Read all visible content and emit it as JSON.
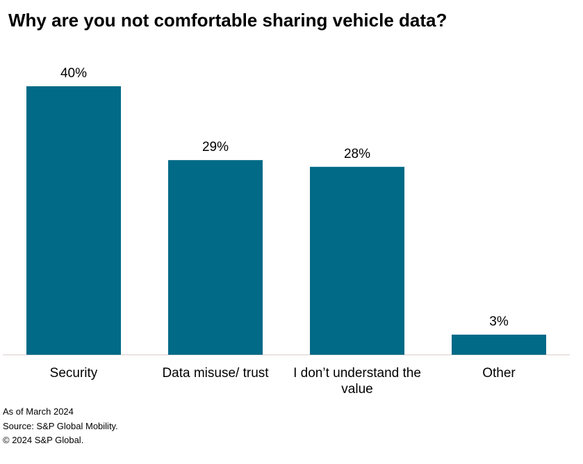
{
  "chart_data": {
    "type": "bar",
    "title": "Why are you not comfortable sharing vehicle data?",
    "categories": [
      "Security",
      "Data misuse/ trust",
      "I don’t understand the value",
      "Other"
    ],
    "category_lines": [
      [
        "Security"
      ],
      [
        "Data misuse/ trust"
      ],
      [
        "I don’t understand the",
        "value"
      ],
      [
        "Other"
      ]
    ],
    "values": [
      40,
      29,
      28,
      3
    ],
    "value_labels": [
      "40%",
      "29%",
      "28%",
      "3%"
    ],
    "unit": "%",
    "xlabel": "",
    "ylabel": "",
    "ylim": [
      0,
      40
    ],
    "grid": false,
    "legend": "none",
    "bar_color": "#006a87",
    "axis_color": "#d9c7c7"
  },
  "footer": {
    "as_of": "As of March 2024",
    "source": "Source: S&P Global Mobility.",
    "copyright": "© 2024 S&P Global."
  }
}
